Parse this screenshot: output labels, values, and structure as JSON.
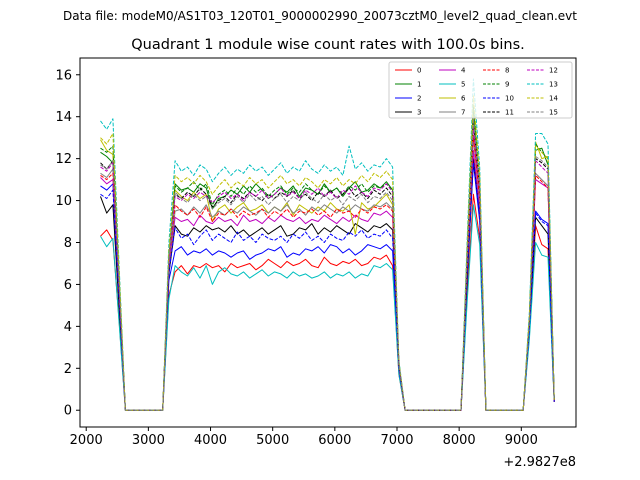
{
  "suptitle": "Data file: modeM0/AS1T03_120T01_9000002990_20073cztM0_level2_quad_clean.evt",
  "chart_data": {
    "type": "line",
    "title": "Quadrant 1 module wise count rates with 100.0s bins.",
    "xlabel": "",
    "ylabel": "",
    "x_offset_label": "+2.9827e8",
    "xlim": [
      1900,
      9880
    ],
    "ylim": [
      -0.8,
      16.8
    ],
    "xticks": [
      2000,
      3000,
      4000,
      5000,
      6000,
      7000,
      8000,
      9000
    ],
    "yticks": [
      0,
      2,
      4,
      6,
      8,
      10,
      12,
      14,
      16
    ],
    "grid": false,
    "legend_position": "top-right",
    "legend_columns": 4,
    "x": [
      2230,
      2330,
      2430,
      2530,
      2630,
      3230,
      3330,
      3430,
      3530,
      3630,
      3730,
      3830,
      3930,
      4030,
      4130,
      4230,
      4330,
      4430,
      4530,
      4630,
      4730,
      4830,
      4930,
      5030,
      5130,
      5230,
      5330,
      5430,
      5530,
      5630,
      5730,
      5830,
      5930,
      6030,
      6130,
      6230,
      6330,
      6430,
      6530,
      6630,
      6730,
      6830,
      6930,
      7030,
      7130,
      8030,
      8130,
      8230,
      8330,
      8430,
      9030,
      9130,
      9230,
      9330,
      9430,
      9530
    ],
    "series": [
      {
        "name": "0",
        "color": "#ff0000",
        "dash": "solid",
        "values": [
          8.3,
          8.6,
          8.1,
          4.2,
          0,
          0,
          5.5,
          6.6,
          6.9,
          6.5,
          6.9,
          6.8,
          7.0,
          6.8,
          6.9,
          6.6,
          7.0,
          6.8,
          6.9,
          7.0,
          6.7,
          6.9,
          7.2,
          7.0,
          6.8,
          7.1,
          6.9,
          7.0,
          7.2,
          6.9,
          6.8,
          7.3,
          7.0,
          6.9,
          7.1,
          7.0,
          7.2,
          6.9,
          7.0,
          7.3,
          7.2,
          7.4,
          6.9,
          1.7,
          0,
          0,
          5.5,
          10.3,
          8.2,
          0,
          0,
          3.6,
          8.8,
          7.9,
          7.7,
          0.4
        ]
      },
      {
        "name": "1",
        "color": "#008000",
        "dash": "solid",
        "values": [
          12.3,
          12.1,
          11.8,
          6.0,
          0,
          0,
          7.1,
          10.8,
          10.5,
          10.6,
          10.4,
          10.8,
          10.6,
          9.6,
          10.1,
          10.2,
          10.5,
          10.3,
          10.7,
          10.4,
          10.8,
          10.5,
          10.1,
          10.3,
          10.6,
          10.4,
          10.7,
          10.2,
          10.6,
          10.5,
          10.3,
          10.8,
          10.4,
          10.6,
          10.2,
          10.6,
          10.9,
          10.4,
          10.5,
          10.8,
          10.6,
          10.9,
          10.5,
          2.0,
          0,
          0,
          7.6,
          14.5,
          10.5,
          0,
          0,
          4.4,
          12.4,
          12.5,
          11.7,
          0.5
        ]
      },
      {
        "name": "2",
        "color": "#0000ff",
        "dash": "solid",
        "values": [
          10.7,
          10.5,
          10.8,
          5.4,
          0,
          0,
          6.2,
          7.6,
          7.8,
          7.4,
          7.6,
          7.5,
          7.7,
          7.4,
          7.6,
          7.5,
          7.3,
          7.5,
          7.6,
          7.2,
          7.4,
          7.5,
          7.7,
          7.6,
          7.8,
          7.3,
          7.5,
          7.4,
          7.7,
          7.6,
          7.8,
          7.5,
          7.9,
          7.8,
          7.5,
          7.7,
          7.4,
          7.6,
          7.9,
          7.8,
          7.7,
          7.9,
          7.6,
          1.9,
          0,
          0,
          6.5,
          11.8,
          9.0,
          0,
          0,
          4.0,
          9.5,
          9.1,
          8.9,
          0.4
        ]
      },
      {
        "name": "3",
        "color": "#000000",
        "dash": "solid",
        "values": [
          10.2,
          9.4,
          9.8,
          4.8,
          0,
          0,
          6.5,
          8.8,
          8.4,
          8.3,
          8.7,
          8.5,
          8.8,
          8.6,
          8.7,
          8.5,
          8.8,
          8.4,
          8.6,
          8.3,
          8.5,
          8.7,
          8.4,
          8.6,
          8.8,
          8.3,
          8.4,
          8.7,
          8.6,
          8.9,
          8.4,
          8.7,
          8.5,
          8.8,
          8.6,
          8.4,
          8.9,
          8.7,
          8.5,
          8.8,
          8.7,
          8.9,
          8.6,
          2.0,
          0,
          0,
          6.2,
          12.0,
          9.4,
          0,
          0,
          3.8,
          9.2,
          8.8,
          8.4,
          0.4
        ]
      },
      {
        "name": "4",
        "color": "#bf00bf",
        "dash": "solid",
        "values": [
          11.1,
          10.8,
          11.0,
          5.5,
          0,
          0,
          6.9,
          9.2,
          9.0,
          9.1,
          8.8,
          9.3,
          9.0,
          8.9,
          9.2,
          9.0,
          9.1,
          8.8,
          9.3,
          9.0,
          9.1,
          8.9,
          9.2,
          9.0,
          9.3,
          9.1,
          9.0,
          9.2,
          8.9,
          9.1,
          9.0,
          9.3,
          9.1,
          8.9,
          9.2,
          9.0,
          9.3,
          9.1,
          9.0,
          9.4,
          9.3,
          9.5,
          9.2,
          2.1,
          0,
          0,
          6.7,
          12.4,
          9.6,
          0,
          0,
          4.1,
          11.0,
          10.8,
          10.6,
          0.4
        ]
      },
      {
        "name": "5",
        "color": "#00bfbf",
        "dash": "solid",
        "values": [
          8.3,
          7.8,
          8.2,
          4.1,
          0,
          0,
          5.3,
          6.9,
          6.6,
          6.4,
          6.8,
          6.3,
          6.9,
          6.0,
          6.6,
          6.8,
          6.5,
          6.4,
          6.6,
          6.3,
          6.5,
          6.7,
          6.4,
          6.6,
          6.5,
          6.3,
          6.6,
          6.4,
          6.5,
          6.3,
          6.4,
          6.6,
          6.3,
          6.5,
          6.4,
          6.6,
          6.3,
          6.5,
          6.4,
          6.9,
          6.8,
          7.0,
          6.7,
          1.7,
          0,
          0,
          5.2,
          9.8,
          7.9,
          0,
          0,
          3.4,
          8.0,
          7.4,
          7.3,
          0.4
        ]
      },
      {
        "name": "6",
        "color": "#bfbf00",
        "dash": "solid",
        "values": [
          12.9,
          12.4,
          12.2,
          6.0,
          0,
          0,
          7.3,
          10.5,
          10.2,
          10.0,
          10.4,
          10.1,
          10.3,
          9.0,
          9.6,
          9.8,
          9.4,
          9.7,
          9.9,
          9.5,
          9.6,
          9.8,
          9.4,
          9.7,
          9.5,
          9.9,
          9.3,
          9.8,
          9.6,
          9.4,
          9.7,
          9.5,
          9.9,
          9.6,
          9.5,
          9.8,
          8.4,
          9.9,
          9.6,
          9.7,
          10.0,
          10.3,
          9.8,
          2.2,
          0,
          0,
          7.3,
          14.0,
          10.7,
          0,
          0,
          4.3,
          12.8,
          12.0,
          12.1,
          0.5
        ]
      },
      {
        "name": "7",
        "color": "#808080",
        "dash": "solid",
        "values": [
          11.3,
          11.1,
          11.5,
          5.6,
          0,
          0,
          7.0,
          9.5,
          9.6,
          9.3,
          9.7,
          9.4,
          9.8,
          9.2,
          9.5,
          9.3,
          9.6,
          9.4,
          9.7,
          9.5,
          9.3,
          9.6,
          9.4,
          9.7,
          9.5,
          9.8,
          9.4,
          9.6,
          9.3,
          9.7,
          9.5,
          9.8,
          9.6,
          9.4,
          9.7,
          9.5,
          9.8,
          9.6,
          9.5,
          9.8,
          9.7,
          9.9,
          9.6,
          2.1,
          0,
          0,
          6.9,
          13.0,
          10.0,
          0,
          0,
          4.2,
          11.3,
          11.0,
          10.7,
          0.4
        ]
      },
      {
        "name": "8",
        "color": "#ff0000",
        "dash": "dashed",
        "values": [
          11.2,
          11.0,
          11.3,
          5.6,
          0,
          0,
          7.1,
          9.8,
          9.5,
          9.3,
          9.6,
          9.2,
          9.7,
          9.0,
          9.4,
          9.3,
          9.6,
          9.2,
          9.5,
          9.3,
          9.4,
          9.6,
          9.2,
          9.5,
          9.3,
          9.6,
          9.2,
          9.5,
          9.4,
          9.6,
          9.3,
          9.5,
          9.2,
          9.6,
          9.4,
          9.5,
          9.2,
          9.6,
          9.4,
          9.7,
          9.6,
          9.8,
          9.5,
          2.1,
          0,
          0,
          7.0,
          13.1,
          10.1,
          0,
          0,
          4.2,
          11.2,
          10.9,
          10.6,
          0.4
        ]
      },
      {
        "name": "9",
        "color": "#008000",
        "dash": "dashed",
        "values": [
          12.5,
          12.3,
          12.6,
          6.2,
          0,
          0,
          7.4,
          10.7,
          10.4,
          10.6,
          10.9,
          10.5,
          10.8,
          9.8,
          10.3,
          10.5,
          10.2,
          10.6,
          10.3,
          10.7,
          10.4,
          10.6,
          10.2,
          10.5,
          10.7,
          10.3,
          10.6,
          10.4,
          10.8,
          10.5,
          10.3,
          10.7,
          10.4,
          10.6,
          10.3,
          10.7,
          10.5,
          10.8,
          10.4,
          10.7,
          10.6,
          10.8,
          10.5,
          2.2,
          0,
          0,
          7.6,
          14.6,
          11.0,
          0,
          0,
          4.4,
          12.7,
          12.3,
          12.0,
          0.5
        ]
      },
      {
        "name": "10",
        "color": "#0000ff",
        "dash": "dashed",
        "values": [
          10.3,
          10.1,
          10.5,
          5.2,
          0,
          0,
          6.6,
          8.7,
          8.2,
          8.4,
          7.9,
          8.3,
          8.6,
          8.1,
          8.4,
          8.2,
          8.0,
          8.5,
          8.1,
          8.3,
          8.0,
          8.4,
          8.2,
          8.1,
          8.3,
          8.0,
          8.4,
          8.2,
          8.5,
          8.1,
          8.3,
          8.0,
          8.4,
          8.2,
          8.1,
          8.5,
          8.3,
          8.6,
          8.2,
          8.4,
          8.3,
          8.6,
          8.2,
          2.0,
          0,
          0,
          6.5,
          11.8,
          9.3,
          0,
          0,
          3.9,
          9.4,
          9.0,
          8.8,
          0.4
        ]
      },
      {
        "name": "11",
        "color": "#000000",
        "dash": "dashed",
        "values": [
          11.8,
          11.5,
          11.9,
          5.8,
          0,
          0,
          7.2,
          10.3,
          10.1,
          10.4,
          10.2,
          10.6,
          10.3,
          9.7,
          10.0,
          10.2,
          9.9,
          10.3,
          10.1,
          10.4,
          10.2,
          10.0,
          10.3,
          10.1,
          10.4,
          10.2,
          10.5,
          10.1,
          10.3,
          10.0,
          10.4,
          10.2,
          10.5,
          10.1,
          10.3,
          10.6,
          10.2,
          10.4,
          10.1,
          10.5,
          10.3,
          10.6,
          10.2,
          2.2,
          0,
          0,
          7.3,
          13.7,
          10.6,
          0,
          0,
          4.3,
          12.0,
          11.8,
          11.5,
          0.5
        ]
      },
      {
        "name": "12",
        "color": "#bf00bf",
        "dash": "dashed",
        "values": [
          11.6,
          11.4,
          11.8,
          5.8,
          0,
          0,
          7.1,
          10.2,
          10.0,
          10.3,
          10.1,
          10.4,
          10.2,
          9.9,
          10.2,
          10.4,
          10.1,
          10.3,
          10.0,
          10.4,
          10.2,
          10.5,
          10.1,
          10.3,
          10.6,
          10.2,
          10.4,
          10.1,
          10.5,
          10.3,
          10.6,
          10.2,
          10.4,
          10.1,
          10.5,
          10.3,
          10.7,
          10.4,
          10.2,
          10.6,
          10.5,
          10.8,
          10.4,
          2.2,
          0,
          0,
          7.2,
          13.5,
          10.5,
          0,
          0,
          4.3,
          11.9,
          11.6,
          11.3,
          0.5
        ]
      },
      {
        "name": "13",
        "color": "#00bfbf",
        "dash": "dashed",
        "values": [
          13.8,
          13.4,
          13.9,
          6.8,
          0,
          0,
          8.0,
          11.9,
          11.4,
          11.6,
          11.2,
          11.7,
          11.5,
          10.9,
          11.3,
          11.6,
          11.2,
          11.5,
          11.3,
          11.7,
          11.4,
          11.6,
          11.2,
          11.5,
          11.8,
          11.3,
          11.6,
          11.4,
          11.9,
          11.5,
          11.3,
          11.7,
          11.4,
          11.6,
          11.2,
          12.6,
          11.5,
          11.8,
          11.4,
          11.7,
          11.6,
          12.0,
          11.6,
          2.4,
          0,
          0,
          8.2,
          15.8,
          11.6,
          0,
          0,
          4.7,
          13.2,
          13.2,
          12.7,
          0.5
        ]
      },
      {
        "name": "14",
        "color": "#bfbf00",
        "dash": "dashed",
        "values": [
          13.0,
          12.7,
          13.2,
          6.5,
          0,
          0,
          7.6,
          11.2,
          10.9,
          11.1,
          10.8,
          11.2,
          10.9,
          10.3,
          10.7,
          11.0,
          10.6,
          10.9,
          10.7,
          11.1,
          10.8,
          11.0,
          10.6,
          10.9,
          11.2,
          10.8,
          11.0,
          10.7,
          11.1,
          10.9,
          10.6,
          11.0,
          10.8,
          11.1,
          10.7,
          11.0,
          10.8,
          11.2,
          10.9,
          11.3,
          11.1,
          11.4,
          11.0,
          2.3,
          0,
          0,
          7.8,
          15.0,
          11.2,
          0,
          0,
          4.5,
          12.6,
          12.3,
          12.0,
          0.5
        ]
      },
      {
        "name": "15",
        "color": "#808080",
        "dash": "dashed",
        "values": [
          11.7,
          11.5,
          11.9,
          5.9,
          0,
          0,
          7.2,
          10.4,
          10.1,
          9.9,
          10.3,
          10.0,
          10.2,
          9.6,
          9.9,
          10.1,
          9.8,
          10.2,
          9.9,
          10.3,
          10.0,
          10.2,
          9.8,
          10.1,
          10.3,
          9.9,
          10.2,
          10.0,
          10.4,
          10.1,
          9.9,
          10.3,
          10.0,
          10.2,
          9.8,
          10.2,
          10.0,
          10.3,
          9.9,
          10.2,
          10.1,
          10.4,
          10.0,
          2.2,
          0,
          0,
          7.3,
          13.9,
          10.7,
          0,
          0,
          4.3,
          12.1,
          11.9,
          11.6,
          0.5
        ]
      }
    ]
  }
}
